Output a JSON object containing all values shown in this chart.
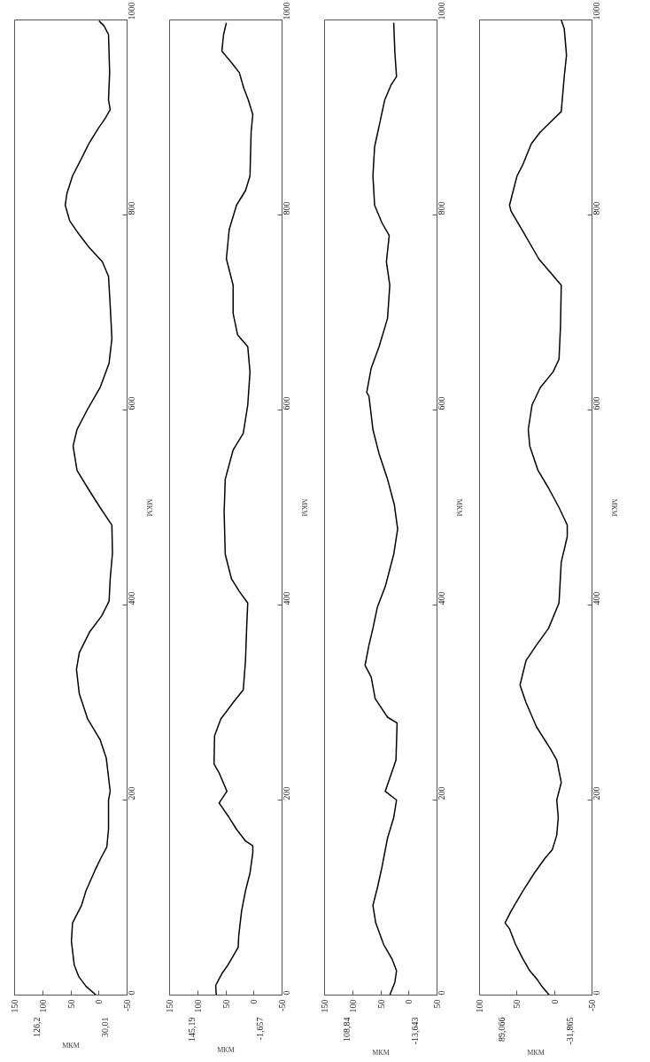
{
  "chart_data": [
    {
      "type": "line",
      "xlabel": "МКМ",
      "ylabel": "МКМ",
      "annotations": [
        "126,2",
        "30,01"
      ],
      "xlim": [
        150,
        -50
      ],
      "xticks": [
        150,
        100,
        50,
        0,
        -50
      ],
      "ylim": [
        0,
        1000
      ],
      "yticks": [
        0,
        200,
        400,
        600,
        800,
        1000
      ],
      "grid": false,
      "series": [
        {
          "color": "#000000",
          "values": [
            0,
            9,
            19,
            31,
            55,
            74,
            92,
            107,
            128,
            140,
            152,
            170,
            200,
            209,
            243,
            262,
            283,
            309,
            334,
            351,
            372,
            389,
            404,
            427,
            453,
            482,
            500,
            520,
            538,
            563,
            580,
            601,
            623,
            648,
            673,
            707,
            737,
            752,
            767,
            783,
            794,
            810,
            822,
            840,
            858,
            873,
            888,
            899,
            908,
            918,
            946,
            985,
            994,
            999
          ],
          "x": [
            5,
            23,
            36,
            44,
            49,
            47,
            31,
            23,
            7,
            -3,
            -14,
            -17,
            -17,
            -20,
            -13,
            -2,
            20,
            35,
            40,
            35,
            17,
            -5,
            -18,
            -20,
            -24,
            -23,
            -2,
            20,
            39,
            46,
            39,
            20,
            -2,
            -18,
            -23,
            -20,
            -17,
            -6,
            18,
            39,
            52,
            60,
            57,
            47,
            31,
            18,
            2,
            -11,
            -20,
            -17,
            -19,
            -17,
            -9,
            0
          ]
        }
      ]
    },
    {
      "type": "line",
      "xlabel": "МКМ",
      "ylabel": "МКМ",
      "annotations": [
        "145,19",
        "-1,657"
      ],
      "xlim": [
        150,
        -50
      ],
      "xticks": [
        150,
        100,
        50,
        0,
        -50
      ],
      "ylim": [
        0,
        1000
      ],
      "yticks": [
        0,
        200,
        400,
        600,
        800,
        1000
      ],
      "grid": false,
      "series": [
        {
          "color": "#000000",
          "values": [
            0,
            10,
            22,
            31,
            49,
            61,
            86,
            107,
            125,
            146,
            153,
            158,
            170,
            182,
            197,
            209,
            228,
            237,
            266,
            283,
            300,
            313,
            343,
            376,
            402,
            414,
            427,
            452,
            495,
            529,
            559,
            576,
            605,
            639,
            665,
            677,
            699,
            728,
            755,
            785,
            810,
            825,
            840,
            885,
            903,
            918,
            930,
            946,
            957,
            968,
            985,
            997
          ],
          "x": [
            67,
            68,
            57,
            46,
            28,
            27,
            22,
            15,
            7,
            2,
            2,
            15,
            31,
            44,
            62,
            48,
            62,
            71,
            70,
            59,
            37,
            19,
            15,
            13,
            11,
            26,
            40,
            51,
            53,
            51,
            37,
            19,
            11,
            7,
            11,
            29,
            37,
            37,
            49,
            44,
            31,
            15,
            7,
            5,
            2,
            10,
            18,
            26,
            41,
            57,
            54,
            49
          ]
        }
      ]
    },
    {
      "type": "line",
      "xlabel": "МКМ",
      "ylabel": "МКМ",
      "annotations": [
        "108,84",
        "-13,643"
      ],
      "xlim": [
        150,
        -50
      ],
      "xticks": [
        150,
        100,
        50,
        0,
        {
          "value": -50,
          "label": "50"
        }
      ],
      "ylim": [
        0,
        1000
      ],
      "yticks": [
        0,
        200,
        400,
        600,
        800,
        1000
      ],
      "grid": false,
      "series": [
        {
          "color": "#000000",
          "values": [
            0,
            13,
            25,
            37,
            52,
            74,
            92,
            110,
            131,
            161,
            182,
            200,
            209,
            241,
            279,
            285,
            304,
            326,
            338,
            359,
            376,
            398,
            419,
            452,
            478,
            503,
            529,
            555,
            580,
            614,
            618,
            643,
            665,
            694,
            728,
            752,
            779,
            792,
            810,
            840,
            870,
            891,
            918,
            933,
            942,
            967,
            997
          ],
          "x": [
            34,
            25,
            22,
            30,
            45,
            59,
            64,
            56,
            48,
            38,
            27,
            22,
            42,
            23,
            21,
            38,
            60,
            67,
            78,
            71,
            64,
            56,
            42,
            27,
            20,
            26,
            38,
            53,
            64,
            71,
            75,
            67,
            53,
            38,
            34,
            40,
            35,
            48,
            61,
            64,
            61,
            53,
            43,
            32,
            22,
            25,
            27
          ]
        }
      ]
    },
    {
      "type": "line",
      "xlabel": "МКМ",
      "ylabel": "МКМ",
      "annotations": [
        "89,066",
        "-31,865"
      ],
      "xlim": [
        100,
        -50
      ],
      "xticks": [
        100,
        50,
        0,
        -50
      ],
      "ylim": [
        0,
        1000
      ],
      "yticks": [
        0,
        200,
        400,
        600,
        800,
        1000
      ],
      "grid": false,
      "series": [
        {
          "color": "#000000",
          "values": [
            0,
            9,
            16,
            25,
            37,
            52,
            68,
            74,
            86,
            107,
            125,
            140,
            149,
            164,
            182,
            200,
            218,
            241,
            252,
            275,
            300,
            318,
            343,
            359,
            376,
            402,
            444,
            470,
            482,
            500,
            520,
            538,
            563,
            580,
            605,
            623,
            639,
            652,
            686,
            728,
            755,
            783,
            804,
            810,
            840,
            852,
            873,
            885,
            897,
            906,
            942,
            964,
            991,
            1000
          ],
          "x": [
            7,
            17,
            23,
            33,
            42,
            52,
            60,
            66,
            58,
            42,
            27,
            13,
            3,
            -3,
            -5,
            -3,
            -9,
            -3,
            5,
            24,
            38,
            46,
            38,
            24,
            8,
            -6,
            -9,
            -17,
            -17,
            -6,
            8,
            22,
            33,
            35,
            30,
            19,
            2,
            -6,
            -8,
            -9,
            21,
            42,
            58,
            60,
            50,
            42,
            31,
            19,
            3,
            -9,
            -13,
            -16,
            -13,
            -9
          ]
        }
      ]
    }
  ]
}
